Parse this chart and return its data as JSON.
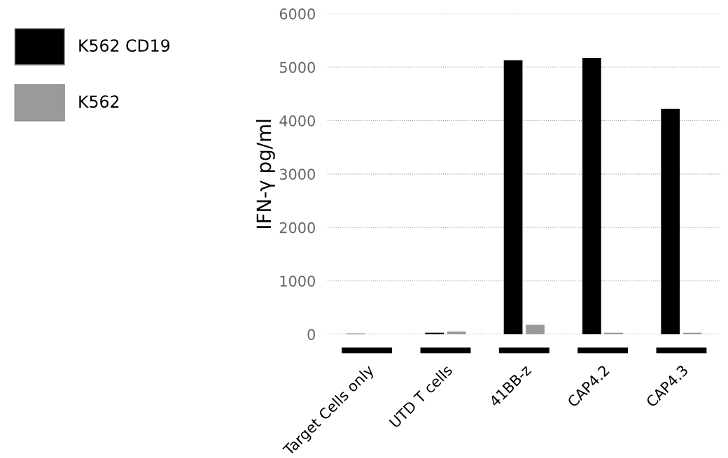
{
  "chart_data": {
    "type": "bar",
    "ylabel": "IFN-γ pg/ml",
    "categories": [
      "Target Cells only",
      "UTD T cells",
      "41BB-z",
      "CAP4.2",
      "CAP4.3"
    ],
    "series": [
      {
        "name": "K562 CD19",
        "color": "#000000",
        "values": [
          10,
          30,
          5130,
          5170,
          4220
        ]
      },
      {
        "name": "K562",
        "color": "#9a9a9a",
        "values": [
          null,
          50,
          180,
          30,
          30
        ]
      }
    ],
    "ylim": [
      0,
      6000
    ],
    "yticks": [
      0,
      1000,
      2000,
      3000,
      4000,
      5000,
      6000
    ],
    "grid": "y",
    "legend": "left"
  }
}
